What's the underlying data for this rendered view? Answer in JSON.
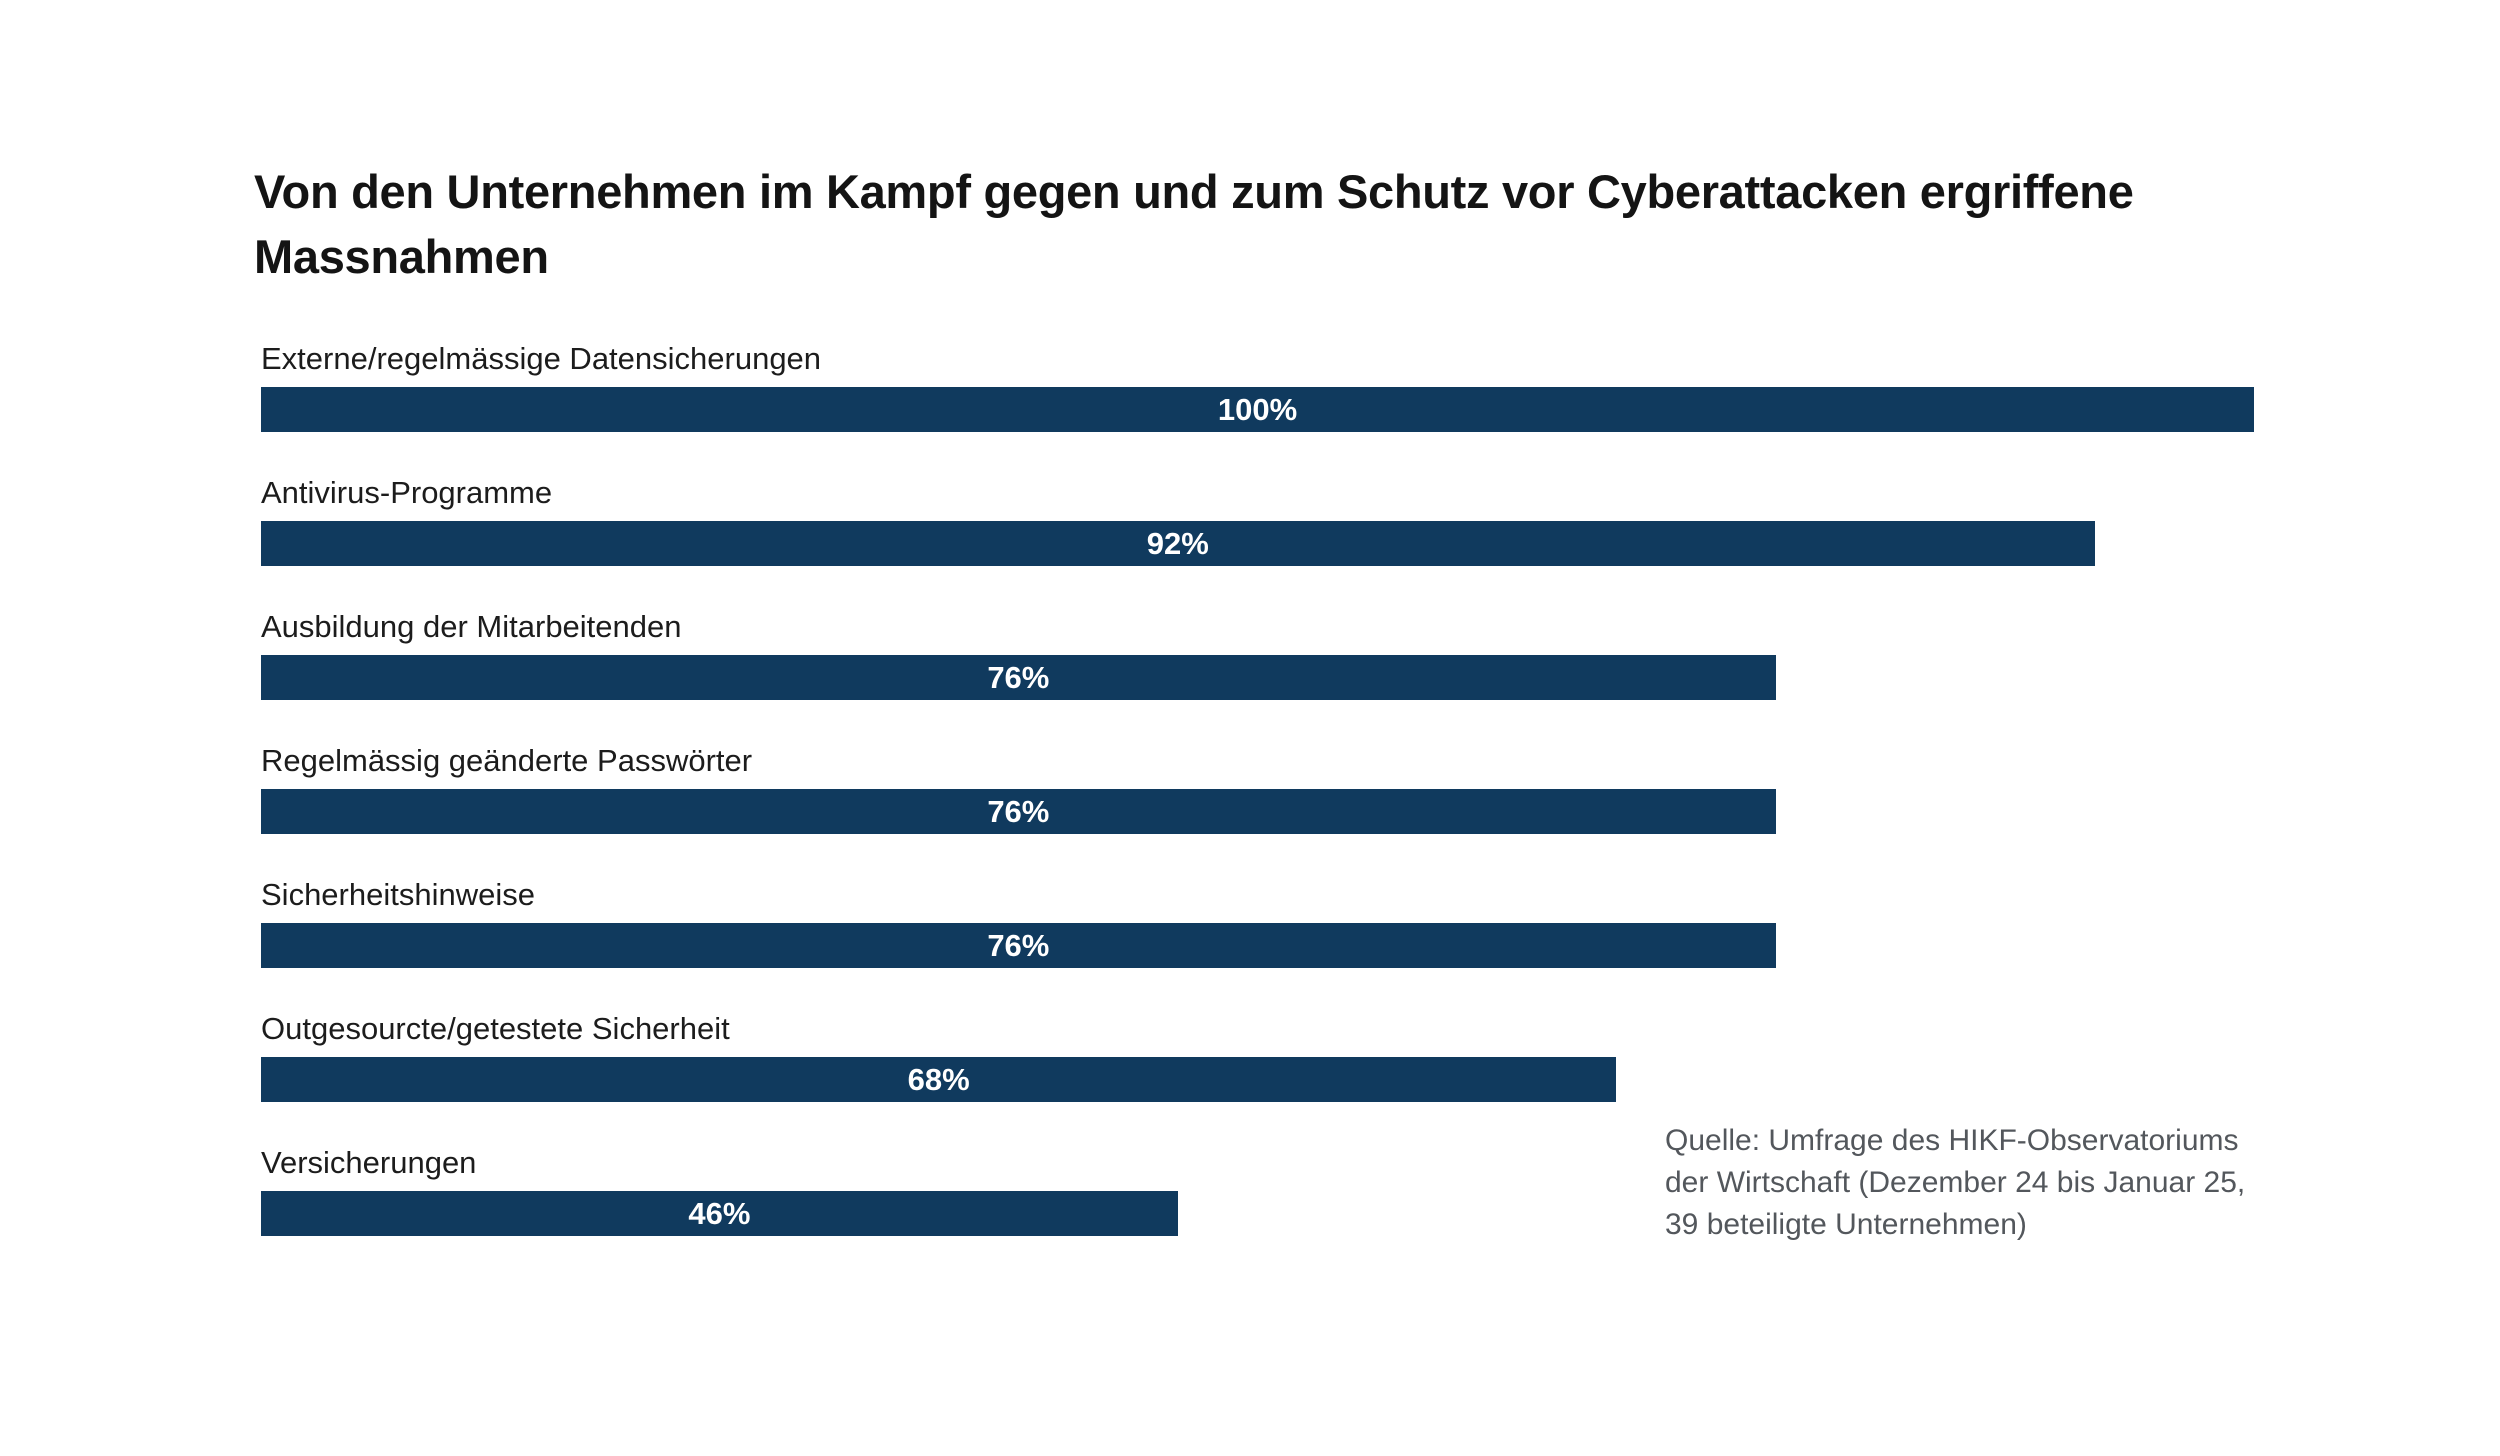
{
  "title": "Von den Unternehmen im Kampf gegen und zum Schutz vor Cyberattacken ergriffene Massnahmen",
  "chart_data": {
    "type": "bar",
    "orientation": "horizontal",
    "title": "Von den Unternehmen im Kampf gegen und zum Schutz vor Cyberattacken ergriffene Massnahmen",
    "categories": [
      "Externe/regelmässige Datensicherungen",
      "Antivirus-Programme",
      "Ausbildung der Mitarbeitenden",
      "Regelmässig geänderte Passwörter",
      "Sicherheitshinweise",
      "Outgesourcte/getestete Sicherheit",
      "Versicherungen"
    ],
    "values": [
      100,
      92,
      76,
      76,
      76,
      68,
      46
    ],
    "value_labels": [
      "100%",
      "92%",
      "76%",
      "76%",
      "76%",
      "68%",
      "46%"
    ],
    "xlim": [
      0,
      100
    ],
    "grid": false,
    "legend": false,
    "bar_color": "#103a5e",
    "value_label_color": "#ffffff",
    "label_color": "#1c1c1c"
  },
  "source_note": {
    "lines": [
      "Quelle: Umfrage des HIKF-Observatoriums",
      "der Wirtschaft (Dezember 24 bis Januar 25,",
      "39 beteiligte Unternehmen)"
    ]
  }
}
